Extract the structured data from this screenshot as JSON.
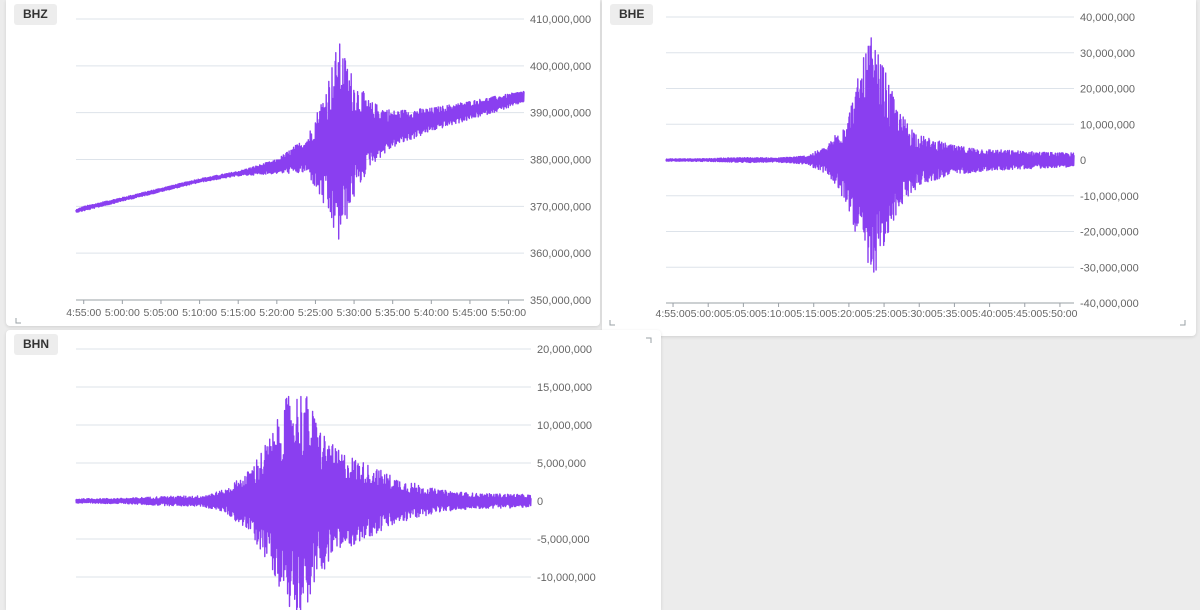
{
  "chart_data": [
    {
      "type": "line",
      "title": "BHZ",
      "xlabel": "",
      "ylabel": "",
      "x_range": [
        "4:54:00",
        "5:52:00"
      ],
      "x_ticks": [
        "4:55:00",
        "5:00:00",
        "5:05:00",
        "5:10:00",
        "5:15:00",
        "5:20:00",
        "5:25:00",
        "5:30:00",
        "5:35:00",
        "5:40:00",
        "5:45:00",
        "5:50:00"
      ],
      "ylim": [
        350000000,
        410000000
      ],
      "y_ticks": [
        350000000,
        360000000,
        370000000,
        380000000,
        390000000,
        400000000,
        410000000
      ],
      "y_tick_labels": [
        "350,000,000",
        "360,000,000",
        "370,000,000",
        "380,000,000",
        "390,000,000",
        "400,000,000",
        "410,000,000"
      ],
      "grid": true,
      "series": [
        {
          "color": "#8a3ff0",
          "x": [
            "4:54:00",
            "4:55:00",
            "5:00:00",
            "5:05:00",
            "5:10:00",
            "5:15:00",
            "5:20:00",
            "5:24:00",
            "5:26:00",
            "5:28:00",
            "5:30:00",
            "5:32:00",
            "5:35:00",
            "5:40:00",
            "5:45:00",
            "5:50:00",
            "5:52:00"
          ],
          "center": [
            369000000,
            369500000,
            371500000,
            373500000,
            375500000,
            377000000,
            378500000,
            381000000,
            382000000,
            383500000,
            384500000,
            385500000,
            386500000,
            388500000,
            390500000,
            392500000,
            393500000
          ],
          "amplitude": [
            300000,
            500000,
            400000,
            400000,
            400000,
            500000,
            1500000,
            4000000,
            12000000,
            22000000,
            13000000,
            7000000,
            4000000,
            2500000,
            2000000,
            1500000,
            1200000
          ]
        }
      ]
    },
    {
      "type": "line",
      "title": "BHE",
      "xlabel": "",
      "ylabel": "",
      "x_range": [
        "4:54:00",
        "5:52:00"
      ],
      "x_ticks": [
        "4:55:00",
        "5:00:00",
        "5:05:00",
        "5:10:00",
        "5:15:00",
        "5:20:00",
        "5:25:00",
        "5:30:00",
        "5:35:00",
        "5:40:00",
        "5:45:00",
        "5:50:00"
      ],
      "ylim": [
        -40000000,
        40000000
      ],
      "y_ticks": [
        -40000000,
        -30000000,
        -20000000,
        -10000000,
        0,
        10000000,
        20000000,
        30000000,
        40000000
      ],
      "y_tick_labels": [
        "-40,000,000",
        "-30,000,000",
        "-20,000,000",
        "-10,000,000",
        "0",
        "10,000,000",
        "20,000,000",
        "30,000,000",
        "40,000,000"
      ],
      "grid": true,
      "series": [
        {
          "color": "#8a3ff0",
          "x": [
            "4:54:00",
            "5:00:00",
            "5:05:00",
            "5:10:00",
            "5:14:00",
            "5:17:00",
            "5:20:00",
            "5:22:00",
            "5:23:00",
            "5:25:00",
            "5:27:00",
            "5:30:00",
            "5:35:00",
            "5:40:00",
            "5:45:00",
            "5:50:00",
            "5:52:00"
          ],
          "center": [
            0,
            0,
            0,
            0,
            0,
            0,
            0,
            0,
            0,
            0,
            0,
            0,
            0,
            0,
            0,
            0,
            0
          ],
          "amplitude": [
            300000,
            400000,
            700000,
            600000,
            1200000,
            4000000,
            14000000,
            28000000,
            35000000,
            26000000,
            14000000,
            7000000,
            4000000,
            3000000,
            2500000,
            2000000,
            2000000
          ]
        }
      ]
    },
    {
      "type": "line",
      "title": "BHN",
      "xlabel": "",
      "ylabel": "",
      "x_range": [
        "4:54:00",
        "5:52:00"
      ],
      "ylim": [
        -15000000,
        20000000
      ],
      "y_ticks": [
        -10000000,
        -5000000,
        0,
        5000000,
        10000000,
        15000000,
        20000000
      ],
      "y_tick_labels": [
        "-10,000,000",
        "-5,000,000",
        "0",
        "5,000,000",
        "10,000,000",
        "15,000,000",
        "20,000,000"
      ],
      "grid": true,
      "series": [
        {
          "color": "#8a3ff0",
          "x": [
            "4:54:00",
            "5:00:00",
            "5:05:00",
            "5:10:00",
            "5:13:00",
            "5:16:00",
            "5:19:00",
            "5:21:00",
            "5:23:00",
            "5:25:00",
            "5:27:00",
            "5:30:00",
            "5:35:00",
            "5:40:00",
            "5:45:00",
            "5:50:00",
            "5:52:00"
          ],
          "center": [
            0,
            0,
            0,
            0,
            0,
            0,
            0,
            0,
            0,
            0,
            0,
            0,
            0,
            0,
            0,
            0,
            0
          ],
          "amplitude": [
            300000,
            350000,
            600000,
            700000,
            1500000,
            4000000,
            9000000,
            14000000,
            15000000,
            10000000,
            7000000,
            5500000,
            3000000,
            1500000,
            1000000,
            900000,
            800000
          ]
        }
      ]
    }
  ]
}
